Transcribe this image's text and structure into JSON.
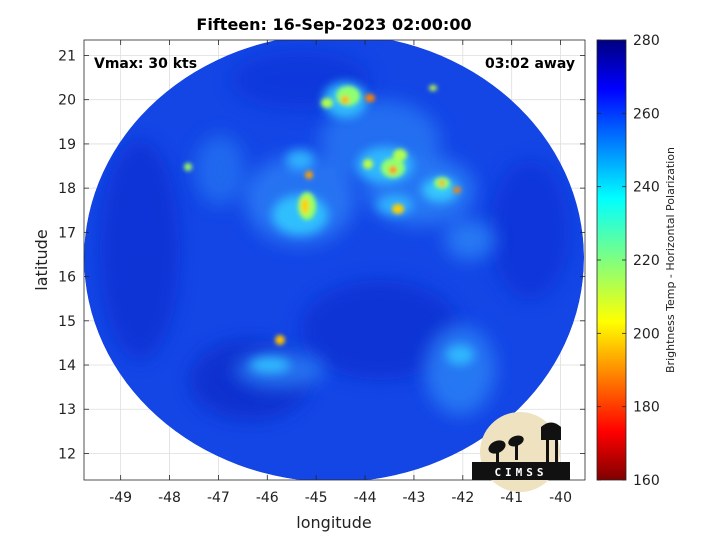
{
  "title": "Fifteen: 16-Sep-2023 02:00:00",
  "annotations": {
    "vmax": "Vmax: 30 kts",
    "time_away": "03:02 away"
  },
  "axes": {
    "xlabel": "longitude",
    "ylabel": "latitude",
    "xlim": [
      -49.75,
      -39.5
    ],
    "ylim": [
      11.4,
      21.35
    ],
    "xticks": [
      "-49",
      "-48",
      "-47",
      "-46",
      "-45",
      "-44",
      "-43",
      "-42",
      "-41",
      "-40"
    ],
    "xtick_values": [
      -49,
      -48,
      -47,
      -46,
      -45,
      -44,
      -43,
      -42,
      -41,
      -40
    ],
    "yticks": [
      "12",
      "13",
      "14",
      "15",
      "16",
      "17",
      "18",
      "19",
      "20",
      "21"
    ],
    "ytick_values": [
      12,
      13,
      14,
      15,
      16,
      17,
      18,
      19,
      20,
      21
    ],
    "grid": true
  },
  "colorbar": {
    "label": "Brightness Temp - Horizontal Polarization",
    "ticks": [
      "280",
      "260",
      "240",
      "220",
      "200",
      "180",
      "160"
    ],
    "tick_values": [
      280,
      260,
      240,
      220,
      200,
      180,
      160
    ],
    "range": [
      160,
      280
    ],
    "colormap": "jet",
    "position": "right"
  },
  "logo": {
    "text": "CIMSS"
  },
  "map_data": {
    "type": "heatmap",
    "swath_center": {
      "lon": -44.7,
      "lat": 16.3
    },
    "background_value": 262,
    "features": [
      {
        "name": "cold cluster north",
        "lon": -44.3,
        "lat": 20.0,
        "min_value": 196
      },
      {
        "name": "cold cluster east",
        "lon": -43.3,
        "lat": 18.4,
        "min_value": 192
      },
      {
        "name": "cold cluster far east",
        "lon": -42.3,
        "lat": 18.0,
        "min_value": 200
      },
      {
        "name": "cold cluster central",
        "lon": -45.1,
        "lat": 17.6,
        "min_value": 195
      },
      {
        "name": "cold cell south",
        "lon": -45.7,
        "lat": 14.55,
        "min_value": 200
      },
      {
        "name": "cold cell 43.3/17.5",
        "lon": -43.3,
        "lat": 17.5,
        "min_value": 198
      }
    ]
  },
  "colors": {
    "background": "#ffffff",
    "grid": "#dedede",
    "swath_base": "#1446e6"
  }
}
